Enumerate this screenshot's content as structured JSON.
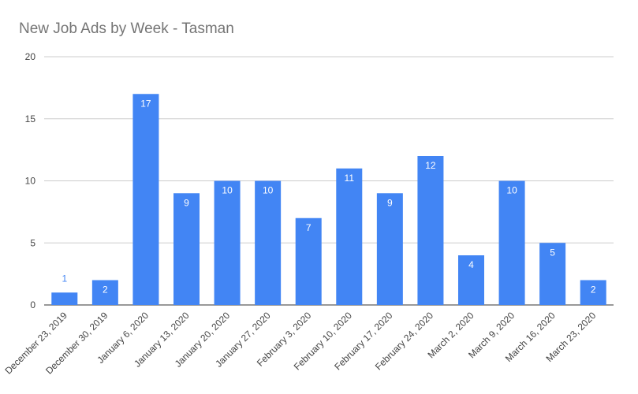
{
  "chart_data": {
    "type": "bar",
    "title": "New Job Ads by Week - Tasman",
    "xlabel": "",
    "ylabel": "",
    "ylim": [
      0,
      20
    ],
    "yticks": [
      0,
      5,
      10,
      15,
      20
    ],
    "grid": true,
    "legend": "none",
    "bar_color": "#4285f4",
    "categories": [
      "December 23, 2019",
      "December 30, 2019",
      "January 6, 2020",
      "January 13, 2020",
      "January 20, 2020",
      "January 27, 2020",
      "February 3, 2020",
      "February 10, 2020",
      "February 17, 2020",
      "February 24, 2020",
      "March 2, 2020",
      "March 9, 2020",
      "March 16, 2020",
      "March 23, 2020"
    ],
    "values": [
      1,
      2,
      17,
      9,
      10,
      10,
      7,
      11,
      9,
      12,
      4,
      10,
      5,
      2
    ]
  }
}
